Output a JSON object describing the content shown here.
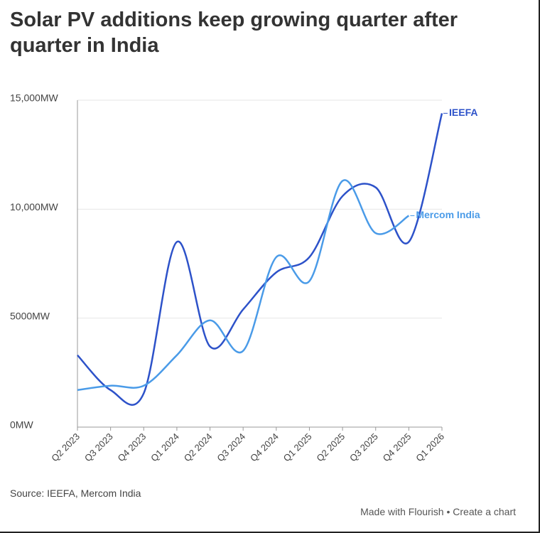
{
  "chart_data": {
    "type": "line",
    "title": "Solar PV additions keep growing quarter after quarter in India",
    "source": "Source: IEEFA, Mercom India",
    "footer": {
      "made_with": "Made with Flourish",
      "separator": "•",
      "create": "Create a chart"
    },
    "categories": [
      "Q2 2023",
      "Q3 2023",
      "Q4 2023",
      "Q1 2024",
      "Q2 2024",
      "Q3 2024",
      "Q4 2024",
      "Q1 2025",
      "Q2 2025",
      "Q3 2025",
      "Q4 2025",
      "Q1 2026"
    ],
    "series": [
      {
        "name": "IEEFA",
        "color": "#2d52c9",
        "values": [
          3300,
          1700,
          1550,
          8500,
          3700,
          5400,
          7100,
          7800,
          10600,
          11000,
          8500,
          14400
        ]
      },
      {
        "name": "Mercom India",
        "color": "#4a9be8",
        "values": [
          1700,
          1900,
          1900,
          3300,
          4900,
          3500,
          7800,
          6700,
          11300,
          8900,
          9700,
          null
        ]
      }
    ],
    "ylim": [
      0,
      15000
    ],
    "yticks": [
      {
        "value": 0,
        "label": "0MW"
      },
      {
        "value": 5000,
        "label": "5000MW"
      },
      {
        "value": 10000,
        "label": "10,000MW"
      },
      {
        "value": 15000,
        "label": "15,000MW"
      }
    ],
    "grid": true
  }
}
